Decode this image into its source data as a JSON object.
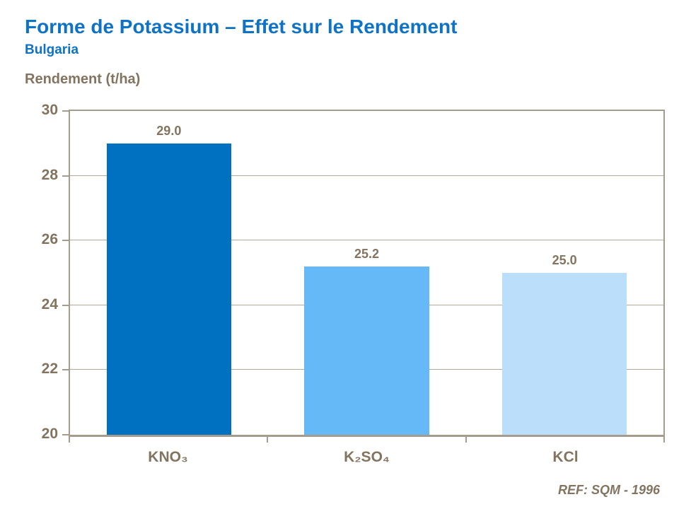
{
  "header": {
    "title": "Forme de Potassium – Effet sur le Rendement",
    "subtitle": "Bulgaria"
  },
  "chart": {
    "axis_title": "Rendement (t/ha)"
  },
  "footer": {
    "ref": "REF: SQM - 1996"
  },
  "colors": {
    "accent_blue": "#0E72C6",
    "text_brown": "#837460",
    "axis_line": "#A69C8E",
    "gridline": "#B3A99B"
  },
  "chart_data": {
    "type": "bar",
    "title": "Forme de Potassium – Effet sur le Rendement",
    "subtitle": "Bulgaria",
    "categories": [
      "KNO₃",
      "K₂SO₄",
      "KCl"
    ],
    "values": [
      29.0,
      25.2,
      25.0
    ],
    "value_labels": [
      "29.0",
      "25.2",
      "25.0"
    ],
    "bar_colors": [
      "#0070C0",
      "#66B9F7",
      "#BBDFFA"
    ],
    "xlabel": "",
    "ylabel": "Rendement (t/ha)",
    "ylim": [
      20,
      30
    ],
    "yticks": [
      20,
      22,
      24,
      26,
      28,
      30
    ],
    "grid": "horizontal",
    "legend": "none"
  }
}
